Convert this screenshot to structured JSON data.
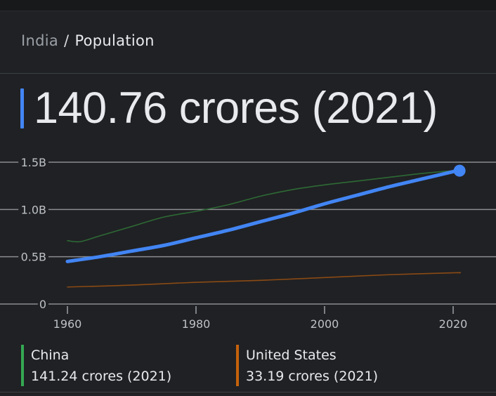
{
  "breadcrumb": {
    "parent": "India",
    "separator": "/",
    "current": "Population"
  },
  "headline": {
    "value_text": "140.76 crores (2021)",
    "accent_color": "#4285f4"
  },
  "chart_data": {
    "type": "line",
    "title": "Population",
    "xlabel": "",
    "ylabel": "",
    "x_ticks": [
      "1960",
      "1980",
      "2000",
      "2020"
    ],
    "y_ticks": [
      "0",
      "0.5B",
      "1.0B",
      "1.5B"
    ],
    "y_tick_values": [
      0,
      0.5,
      1.0,
      1.5
    ],
    "x_range": [
      1960,
      2021
    ],
    "ylim": [
      0,
      1.5
    ],
    "grid": true,
    "legend_position": "bottom",
    "series": [
      {
        "name": "India",
        "color": "#4285f4",
        "highlighted": true,
        "points": [
          [
            1960,
            0.45
          ],
          [
            1965,
            0.5
          ],
          [
            1970,
            0.56
          ],
          [
            1975,
            0.62
          ],
          [
            1980,
            0.7
          ],
          [
            1985,
            0.78
          ],
          [
            1990,
            0.87
          ],
          [
            1995,
            0.96
          ],
          [
            2000,
            1.06
          ],
          [
            2005,
            1.15
          ],
          [
            2010,
            1.24
          ],
          [
            2015,
            1.32
          ],
          [
            2020,
            1.4
          ],
          [
            2021,
            1.41
          ]
        ]
      },
      {
        "name": "China",
        "color": "#34a853",
        "highlighted": false,
        "points": [
          [
            1960,
            0.67
          ],
          [
            1962,
            0.66
          ],
          [
            1965,
            0.72
          ],
          [
            1970,
            0.82
          ],
          [
            1975,
            0.92
          ],
          [
            1980,
            0.98
          ],
          [
            1985,
            1.05
          ],
          [
            1990,
            1.14
          ],
          [
            1995,
            1.21
          ],
          [
            2000,
            1.26
          ],
          [
            2005,
            1.3
          ],
          [
            2010,
            1.34
          ],
          [
            2015,
            1.38
          ],
          [
            2020,
            1.41
          ],
          [
            2021,
            1.41
          ]
        ]
      },
      {
        "name": "United States",
        "color": "#c5620c",
        "highlighted": false,
        "points": [
          [
            1960,
            0.18
          ],
          [
            1970,
            0.2
          ],
          [
            1980,
            0.23
          ],
          [
            1990,
            0.25
          ],
          [
            2000,
            0.28
          ],
          [
            2010,
            0.31
          ],
          [
            2020,
            0.33
          ],
          [
            2021,
            0.33
          ]
        ]
      }
    ]
  },
  "legend": [
    {
      "name": "China",
      "stat": "141.24 crores (2021)",
      "color": "#34a853"
    },
    {
      "name": "United States",
      "stat": "33.19 crores (2021)",
      "color": "#c5620c"
    }
  ]
}
